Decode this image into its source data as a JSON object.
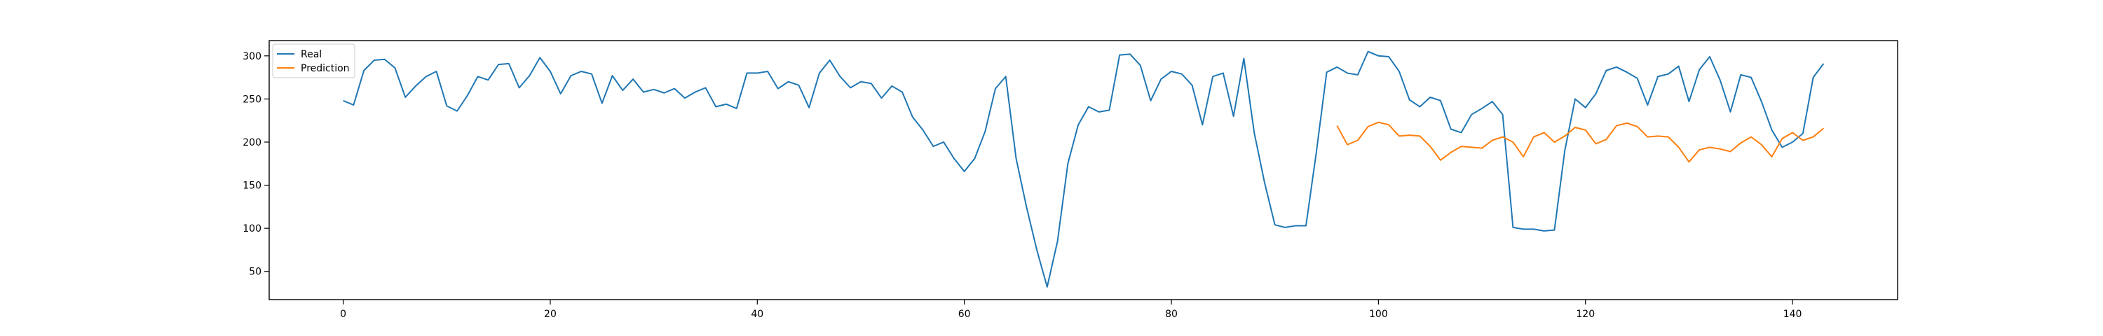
{
  "chart_data": {
    "type": "line",
    "title": "",
    "xlabel": "",
    "ylabel": "",
    "xlim": [
      -7.15,
      150.15
    ],
    "ylim": [
      17.3,
      317.7
    ],
    "x_ticks": [
      0,
      20,
      40,
      60,
      80,
      100,
      120,
      140
    ],
    "y_ticks": [
      50,
      100,
      150,
      200,
      250,
      300
    ],
    "grid": false,
    "legend": {
      "placement": "top-left"
    },
    "series": [
      {
        "name": "Real",
        "color": "#1f77b4",
        "x_start": 0,
        "values": [
          248,
          243,
          283,
          295,
          296,
          286,
          252,
          265,
          276,
          282,
          242,
          236,
          254,
          276,
          272,
          290,
          291,
          263,
          277,
          298,
          282,
          256,
          277,
          282,
          279,
          245,
          277,
          260,
          273,
          258,
          261,
          257,
          262,
          251,
          258,
          263,
          241,
          244,
          239,
          280,
          280,
          282,
          262,
          270,
          266,
          240,
          280,
          295,
          276,
          263,
          270,
          268,
          251,
          265,
          258,
          229,
          214,
          195,
          200,
          181,
          166,
          181,
          212,
          262,
          276,
          181,
          125,
          75,
          32,
          85,
          175,
          220,
          241,
          235,
          237,
          301,
          302,
          289,
          248,
          273,
          282,
          279,
          266,
          220,
          276,
          280,
          230,
          297,
          211,
          153,
          104,
          101,
          103,
          103,
          188,
          281,
          287,
          280,
          278,
          305,
          300,
          299,
          282,
          249,
          241,
          252,
          248,
          215,
          211,
          232,
          239,
          247,
          232,
          101,
          99,
          99,
          97,
          98,
          190,
          250,
          240,
          256,
          283,
          287,
          281,
          274,
          243,
          276,
          279,
          288,
          247,
          284,
          299,
          272,
          235,
          278,
          275,
          247,
          214,
          194,
          200,
          210,
          275,
          291
        ]
      },
      {
        "name": "Prediction",
        "color": "#ff7f0e",
        "x_start": 96,
        "values": [
          219,
          197,
          202,
          218,
          223,
          220,
          207,
          208,
          207,
          195,
          179,
          188,
          195,
          194,
          193,
          202,
          206,
          200,
          183,
          206,
          211,
          200,
          207,
          217,
          214,
          198,
          203,
          219,
          222,
          218,
          206,
          207,
          206,
          194,
          177,
          191,
          194,
          192,
          189,
          199,
          206,
          197,
          183,
          204,
          211,
          202,
          206,
          216
        ]
      }
    ]
  }
}
